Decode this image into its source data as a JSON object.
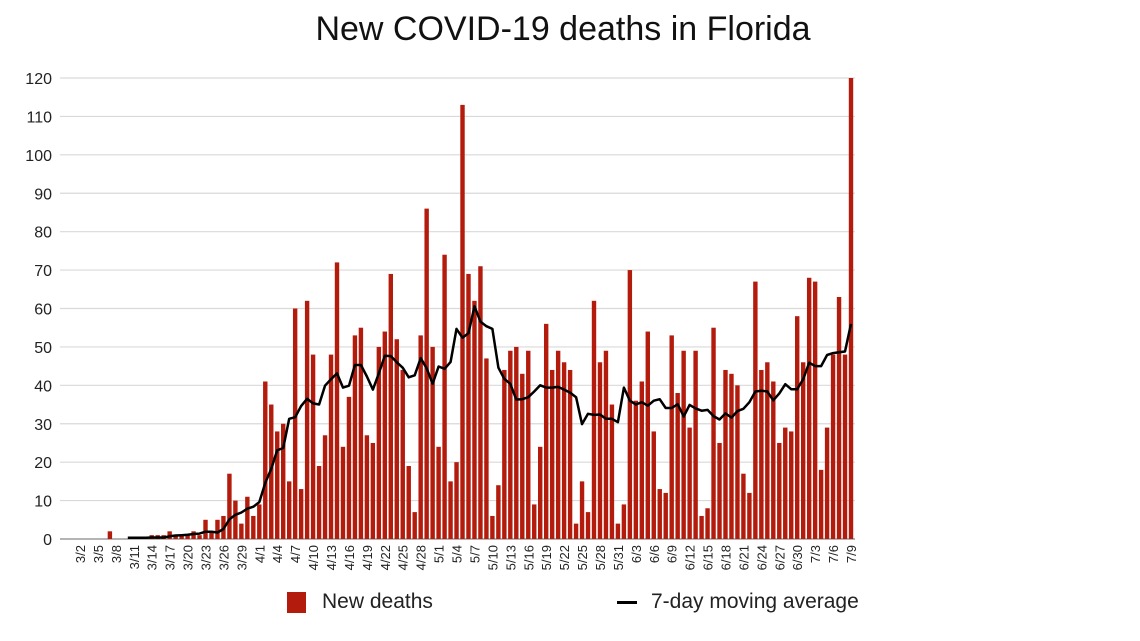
{
  "chart_data": {
    "type": "bar",
    "title": "New COVID-19 deaths in Florida",
    "xlabel": "",
    "ylabel": "",
    "ylim": [
      0,
      120
    ],
    "yticks": [
      0,
      10,
      20,
      30,
      40,
      50,
      60,
      70,
      80,
      90,
      100,
      110,
      120
    ],
    "grid": true,
    "legend_placement": "bottom",
    "colors": {
      "bars": "#b31b0c",
      "line": "#000000",
      "grid": "#d9d9d9"
    },
    "start_date": "3/2",
    "tick_every": 3,
    "categories": [
      "3/2",
      "3/3",
      "3/4",
      "3/5",
      "3/6",
      "3/7",
      "3/8",
      "3/9",
      "3/10",
      "3/11",
      "3/12",
      "3/13",
      "3/14",
      "3/15",
      "3/16",
      "3/17",
      "3/18",
      "3/19",
      "3/20",
      "3/21",
      "3/22",
      "3/23",
      "3/24",
      "3/25",
      "3/26",
      "3/27",
      "3/28",
      "3/29",
      "3/30",
      "3/31",
      "4/1",
      "4/2",
      "4/3",
      "4/4",
      "4/5",
      "4/6",
      "4/7",
      "4/8",
      "4/9",
      "4/10",
      "4/11",
      "4/12",
      "4/13",
      "4/14",
      "4/15",
      "4/16",
      "4/17",
      "4/18",
      "4/19",
      "4/20",
      "4/21",
      "4/22",
      "4/23",
      "4/24",
      "4/25",
      "4/26",
      "4/27",
      "4/28",
      "4/29",
      "4/30",
      "5/1",
      "5/2",
      "5/3",
      "5/4",
      "5/5",
      "5/6",
      "5/7",
      "5/8",
      "5/9",
      "5/10",
      "5/11",
      "5/12",
      "5/13",
      "5/14",
      "5/15",
      "5/16",
      "5/17",
      "5/18",
      "5/19",
      "5/20",
      "5/21",
      "5/22",
      "5/23",
      "5/24",
      "5/25",
      "5/26",
      "5/27",
      "5/28",
      "5/29",
      "5/30",
      "5/31",
      "6/1",
      "6/2",
      "6/3",
      "6/4",
      "6/5",
      "6/6",
      "6/7",
      "6/8",
      "6/9",
      "6/10",
      "6/11",
      "6/12",
      "6/13",
      "6/14",
      "6/15",
      "6/16",
      "6/17",
      "6/18",
      "6/19",
      "6/20",
      "6/21",
      "6/22",
      "6/23",
      "6/24",
      "6/25",
      "6/26",
      "6/27",
      "6/28",
      "6/29",
      "6/30",
      "7/1",
      "7/2",
      "7/3",
      "7/4",
      "7/5",
      "7/6",
      "7/7",
      "7/8",
      "7/9"
    ],
    "series": [
      {
        "name": "New deaths",
        "type": "bar",
        "values": [
          0,
          0,
          0,
          0,
          0,
          2,
          0,
          0,
          0,
          0,
          0,
          0,
          1,
          1,
          1,
          2,
          1,
          1,
          1,
          2,
          1,
          5,
          2,
          5,
          6,
          17,
          10,
          4,
          11,
          6,
          9,
          41,
          35,
          28,
          30,
          15,
          60,
          13,
          62,
          48,
          19,
          27,
          48,
          72,
          24,
          37,
          53,
          55,
          27,
          25,
          50,
          54,
          69,
          52,
          44,
          19,
          7,
          53,
          86,
          50,
          24,
          74,
          15,
          20,
          113,
          69,
          62,
          71,
          47,
          6,
          14,
          44,
          49,
          50,
          43,
          49,
          9,
          24,
          56,
          44,
          49,
          46,
          44,
          4,
          15,
          7,
          62,
          46,
          49,
          35,
          4,
          9,
          70,
          36,
          41,
          54,
          28,
          13,
          12,
          53,
          38,
          49,
          29,
          49,
          6,
          8,
          55,
          25,
          44,
          43,
          40,
          17,
          12,
          67,
          44,
          46,
          41,
          25,
          29,
          28,
          58,
          46,
          68,
          67,
          18,
          29,
          48,
          63,
          48,
          120
        ]
      },
      {
        "name": "7-day moving average",
        "type": "line",
        "values": [
          null,
          null,
          null,
          null,
          null,
          null,
          null,
          null,
          0.3,
          0.3,
          0.3,
          0.3,
          0.4,
          0.4,
          0.4,
          0.7,
          0.9,
          1.0,
          1.1,
          1.3,
          1.4,
          1.9,
          1.9,
          1.7,
          2.6,
          5.1,
          6.3,
          6.9,
          7.9,
          8.4,
          9.6,
          14.6,
          18.3,
          23.1,
          23.7,
          31.3,
          31.7,
          34.6,
          36.5,
          35.3,
          35.0,
          39.9,
          41.6,
          43.1,
          39.4,
          39.9,
          45.3,
          45.3,
          42.3,
          38.9,
          43.1,
          47.7,
          47.6,
          46.0,
          44.6,
          42.1,
          42.6,
          47.1,
          44.4,
          40.4,
          44.9,
          44.3,
          46.1,
          54.7,
          52.4,
          53.6,
          60.6,
          56.6,
          55.4,
          54.7,
          44.6,
          41.7,
          40.4,
          36.3,
          36.4,
          36.9,
          38.4,
          40.0,
          39.4,
          39.4,
          39.6,
          38.9,
          38.1,
          36.9,
          29.9,
          32.6,
          32.3,
          32.4,
          31.3,
          31.3,
          30.4,
          39.4,
          36.0,
          35.0,
          35.6,
          34.7,
          36.0,
          36.4,
          34.1,
          34.1,
          35.1,
          31.9,
          34.9,
          34.0,
          33.4,
          33.6,
          32.0,
          31.1,
          32.7,
          31.6,
          33.3,
          33.9,
          35.6,
          38.4,
          38.6,
          38.4,
          36.1,
          37.9,
          40.3,
          39.0,
          39.0,
          41.6,
          45.9,
          45.0,
          45.0,
          47.9,
          48.4,
          48.6,
          48.8,
          56.0
        ]
      }
    ]
  }
}
